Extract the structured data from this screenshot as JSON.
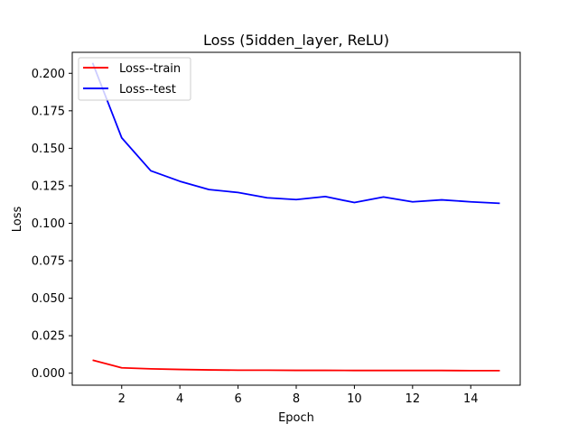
{
  "chart_data": {
    "type": "line",
    "title": "Loss (5idden_layer, ReLU)",
    "xlabel": "Epoch",
    "ylabel": "Loss",
    "xlim": [
      0.3,
      15.7
    ],
    "ylim": [
      -0.008,
      0.214
    ],
    "xticks": [
      2,
      4,
      6,
      8,
      10,
      12,
      14
    ],
    "yticks": [
      0.0,
      0.025,
      0.05,
      0.075,
      0.1,
      0.125,
      0.15,
      0.175,
      0.2
    ],
    "ytick_labels": [
      "0.000",
      "0.025",
      "0.050",
      "0.075",
      "0.100",
      "0.125",
      "0.150",
      "0.175",
      "0.200"
    ],
    "xtick_labels": [
      "2",
      "4",
      "6",
      "8",
      "10",
      "12",
      "14"
    ],
    "grid": false,
    "legend_position": "top-left",
    "x": [
      1,
      2,
      3,
      4,
      5,
      6,
      7,
      8,
      9,
      10,
      11,
      12,
      13,
      14,
      15
    ],
    "series": [
      {
        "name": "Loss--train",
        "color": "#ff0000",
        "values": [
          0.0087,
          0.0036,
          0.0029,
          0.0025,
          0.0022,
          0.002,
          0.002,
          0.0019,
          0.0019,
          0.0018,
          0.0018,
          0.0018,
          0.0018,
          0.0017,
          0.0017
        ]
      },
      {
        "name": "Loss--test",
        "color": "#0000ff",
        "values": [
          0.207,
          0.157,
          0.135,
          0.128,
          0.1225,
          0.1205,
          0.117,
          0.1158,
          0.1178,
          0.1138,
          0.1175,
          0.1143,
          0.1156,
          0.1143,
          0.1133
        ]
      }
    ]
  }
}
